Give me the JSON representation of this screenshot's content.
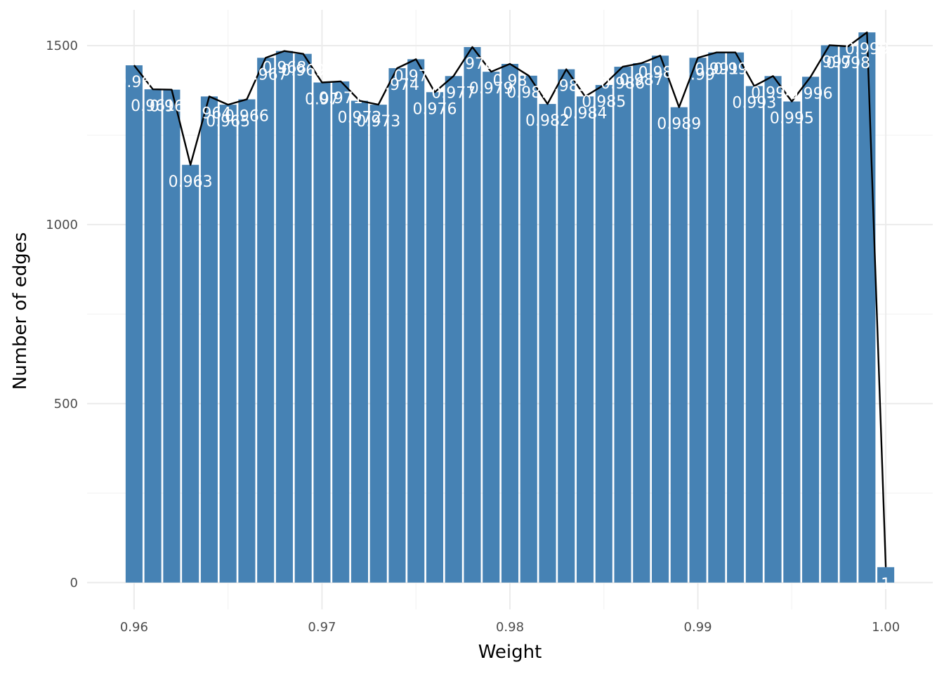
{
  "chart_data": {
    "type": "bar",
    "title": "",
    "xlabel": "Weight",
    "ylabel": "Number of edges",
    "xlim": [
      0.9575,
      1.0025
    ],
    "ylim": [
      -75,
      1600
    ],
    "x_ticks": [
      0.96,
      0.97,
      0.98,
      0.99,
      1.0
    ],
    "x_tick_labels": [
      "0.96",
      "0.97",
      "0.98",
      "0.99",
      "1.00"
    ],
    "y_ticks": [
      0,
      500,
      1000,
      1500
    ],
    "y_tick_labels": [
      "0",
      "500",
      "1000",
      "1500"
    ],
    "grid": true,
    "bar_color": "#4682B4",
    "line_color": "#000000",
    "bar_label_color": "#FFFFFF",
    "x": [
      0.96,
      0.961,
      0.962,
      0.963,
      0.964,
      0.965,
      0.966,
      0.967,
      0.968,
      0.969,
      0.97,
      0.971,
      0.972,
      0.973,
      0.974,
      0.975,
      0.976,
      0.977,
      0.978,
      0.979,
      0.98,
      0.981,
      0.982,
      0.983,
      0.984,
      0.985,
      0.986,
      0.987,
      0.988,
      0.989,
      0.99,
      0.991,
      0.992,
      0.993,
      0.994,
      0.995,
      0.996,
      0.997,
      0.998,
      0.999,
      1.0
    ],
    "values": [
      1445,
      1378,
      1377,
      1167,
      1358,
      1335,
      1350,
      1466,
      1485,
      1477,
      1397,
      1400,
      1346,
      1335,
      1437,
      1462,
      1370,
      1415,
      1496,
      1427,
      1449,
      1416,
      1337,
      1434,
      1358,
      1390,
      1441,
      1451,
      1472,
      1328,
      1466,
      1481,
      1481,
      1387,
      1415,
      1344,
      1413,
      1501,
      1498,
      1537,
      43
    ],
    "bar_labels": [
      "0.96",
      "0.961",
      "0.962",
      "0.963",
      "0.964",
      "0.965",
      "0.966",
      "0.967",
      "0.968",
      "0.969",
      "0.97",
      "0.971",
      "0.972",
      "0.973",
      "0.974",
      "0.975",
      "0.976",
      "0.977",
      "0.978",
      "0.979",
      "0.98",
      "0.981",
      "0.982",
      "0.983",
      "0.984",
      "0.985",
      "0.986",
      "0.987",
      "0.988",
      "0.989",
      "0.99",
      "0.991",
      "0.992",
      "0.993",
      "0.994",
      "0.995",
      "0.996",
      "0.997",
      "0.998",
      "0.999",
      "1"
    ],
    "line_series": {
      "x": [
        0.96,
        0.961,
        0.962,
        0.963,
        0.964,
        0.965,
        0.966,
        0.967,
        0.968,
        0.969,
        0.97,
        0.971,
        0.972,
        0.973,
        0.974,
        0.975,
        0.976,
        0.977,
        0.978,
        0.979,
        0.98,
        0.981,
        0.982,
        0.983,
        0.984,
        0.985,
        0.986,
        0.987,
        0.988,
        0.989,
        0.99,
        0.991,
        0.992,
        0.993,
        0.994,
        0.995,
        0.996,
        0.997,
        0.998,
        0.999,
        1.0
      ],
      "values": [
        1445,
        1378,
        1377,
        1167,
        1358,
        1335,
        1350,
        1466,
        1485,
        1477,
        1397,
        1400,
        1346,
        1335,
        1437,
        1462,
        1370,
        1415,
        1496,
        1427,
        1449,
        1416,
        1337,
        1434,
        1358,
        1390,
        1441,
        1451,
        1472,
        1328,
        1466,
        1481,
        1481,
        1387,
        1415,
        1344,
        1413,
        1501,
        1498,
        1537,
        43
      ]
    }
  }
}
